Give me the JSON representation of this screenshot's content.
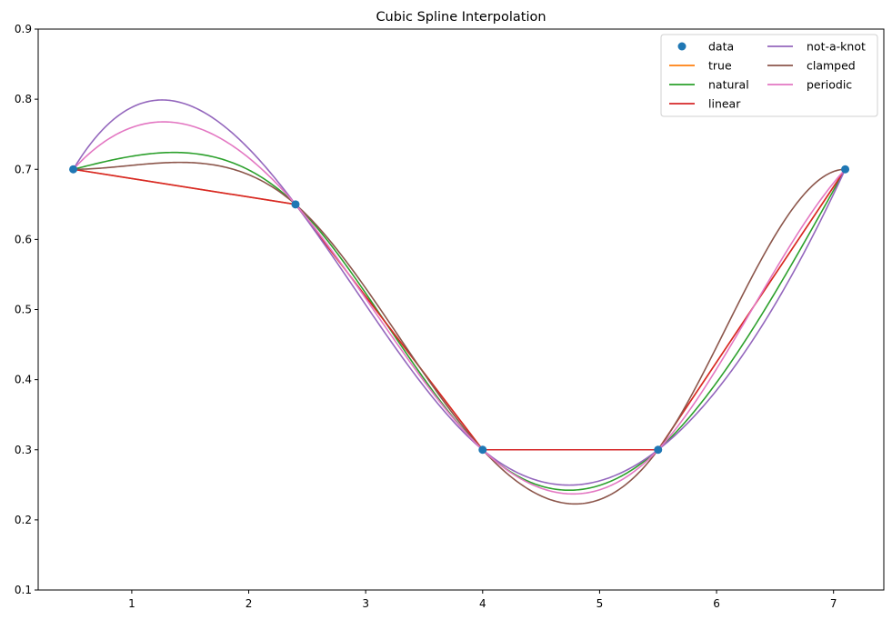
{
  "chart_data": {
    "type": "line",
    "title": "Cubic Spline Interpolation",
    "xlabel": "",
    "ylabel": "",
    "xlim": [
      0.2,
      7.43
    ],
    "ylim": [
      0.1,
      0.9
    ],
    "xticks": [
      1,
      2,
      3,
      4,
      5,
      6,
      7
    ],
    "xtick_labels": [
      "1",
      "2",
      "3",
      "4",
      "5",
      "6",
      "7"
    ],
    "yticks": [
      0.1,
      0.2,
      0.3,
      0.4,
      0.5,
      0.6,
      0.7,
      0.8,
      0.9
    ],
    "ytick_labels": [
      "0.1",
      "0.2",
      "0.3",
      "0.4",
      "0.5",
      "0.6",
      "0.7",
      "0.8",
      "0.9"
    ],
    "grid": false,
    "legend_placement": "top-right",
    "legend_columns": 2,
    "data_points": {
      "name": "data",
      "color": "#1f77b4",
      "x": [
        0.5,
        2.4,
        4.0,
        5.5,
        7.1
      ],
      "y": [
        0.7,
        0.65,
        0.3,
        0.3,
        0.7
      ]
    },
    "series": [
      {
        "name": "data",
        "kind": "marker",
        "color": "#1f77b4"
      },
      {
        "name": "true",
        "kind": "linear",
        "color": "#ff7f0e"
      },
      {
        "name": "natural",
        "kind": "spline",
        "bc": "natural",
        "color": "#2ca02c"
      },
      {
        "name": "linear",
        "kind": "linear",
        "color": "#d62728"
      },
      {
        "name": "not-a-knot",
        "kind": "spline",
        "bc": "not-a-knot",
        "color": "#9467bd"
      },
      {
        "name": "clamped",
        "kind": "spline",
        "bc": "clamped",
        "color": "#8c564b"
      },
      {
        "name": "periodic",
        "kind": "spline",
        "bc": "periodic",
        "color": "#e377c2"
      }
    ],
    "approx_extrema": {
      "not-a-knot_max": 0.799,
      "periodic_max": 0.767,
      "natural_max": 0.724,
      "clamped_max": 0.71,
      "not-a-knot_min": 0.249,
      "natural_min": 0.241,
      "periodic_min": 0.236,
      "clamped_min": 0.223
    }
  }
}
